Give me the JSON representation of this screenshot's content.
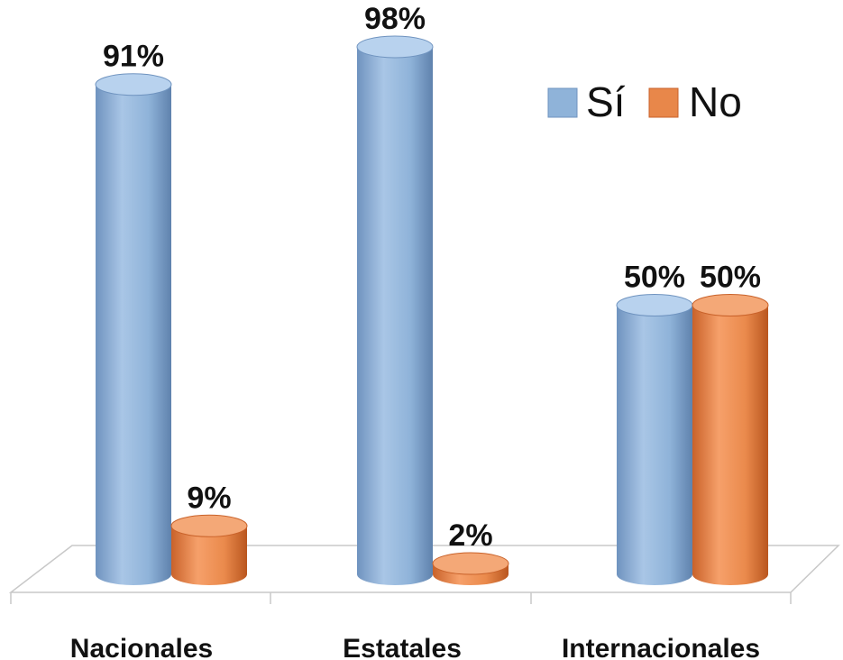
{
  "chart_data": {
    "type": "bar",
    "style": "3d-cylinder",
    "categories": [
      "Nacionales",
      "Estatales",
      "Internacionales"
    ],
    "series": [
      {
        "name": "Sí",
        "values": [
          91,
          98,
          50
        ],
        "labels": [
          "91%",
          "98%",
          "50%"
        ],
        "color": "#8fb3d9"
      },
      {
        "name": "No",
        "values": [
          9,
          2,
          50
        ],
        "labels": [
          "9%",
          "2%",
          "50%"
        ],
        "color": "#e8874a"
      }
    ],
    "ylim": [
      0,
      100
    ],
    "legend_position": "top-right",
    "grid": false
  }
}
